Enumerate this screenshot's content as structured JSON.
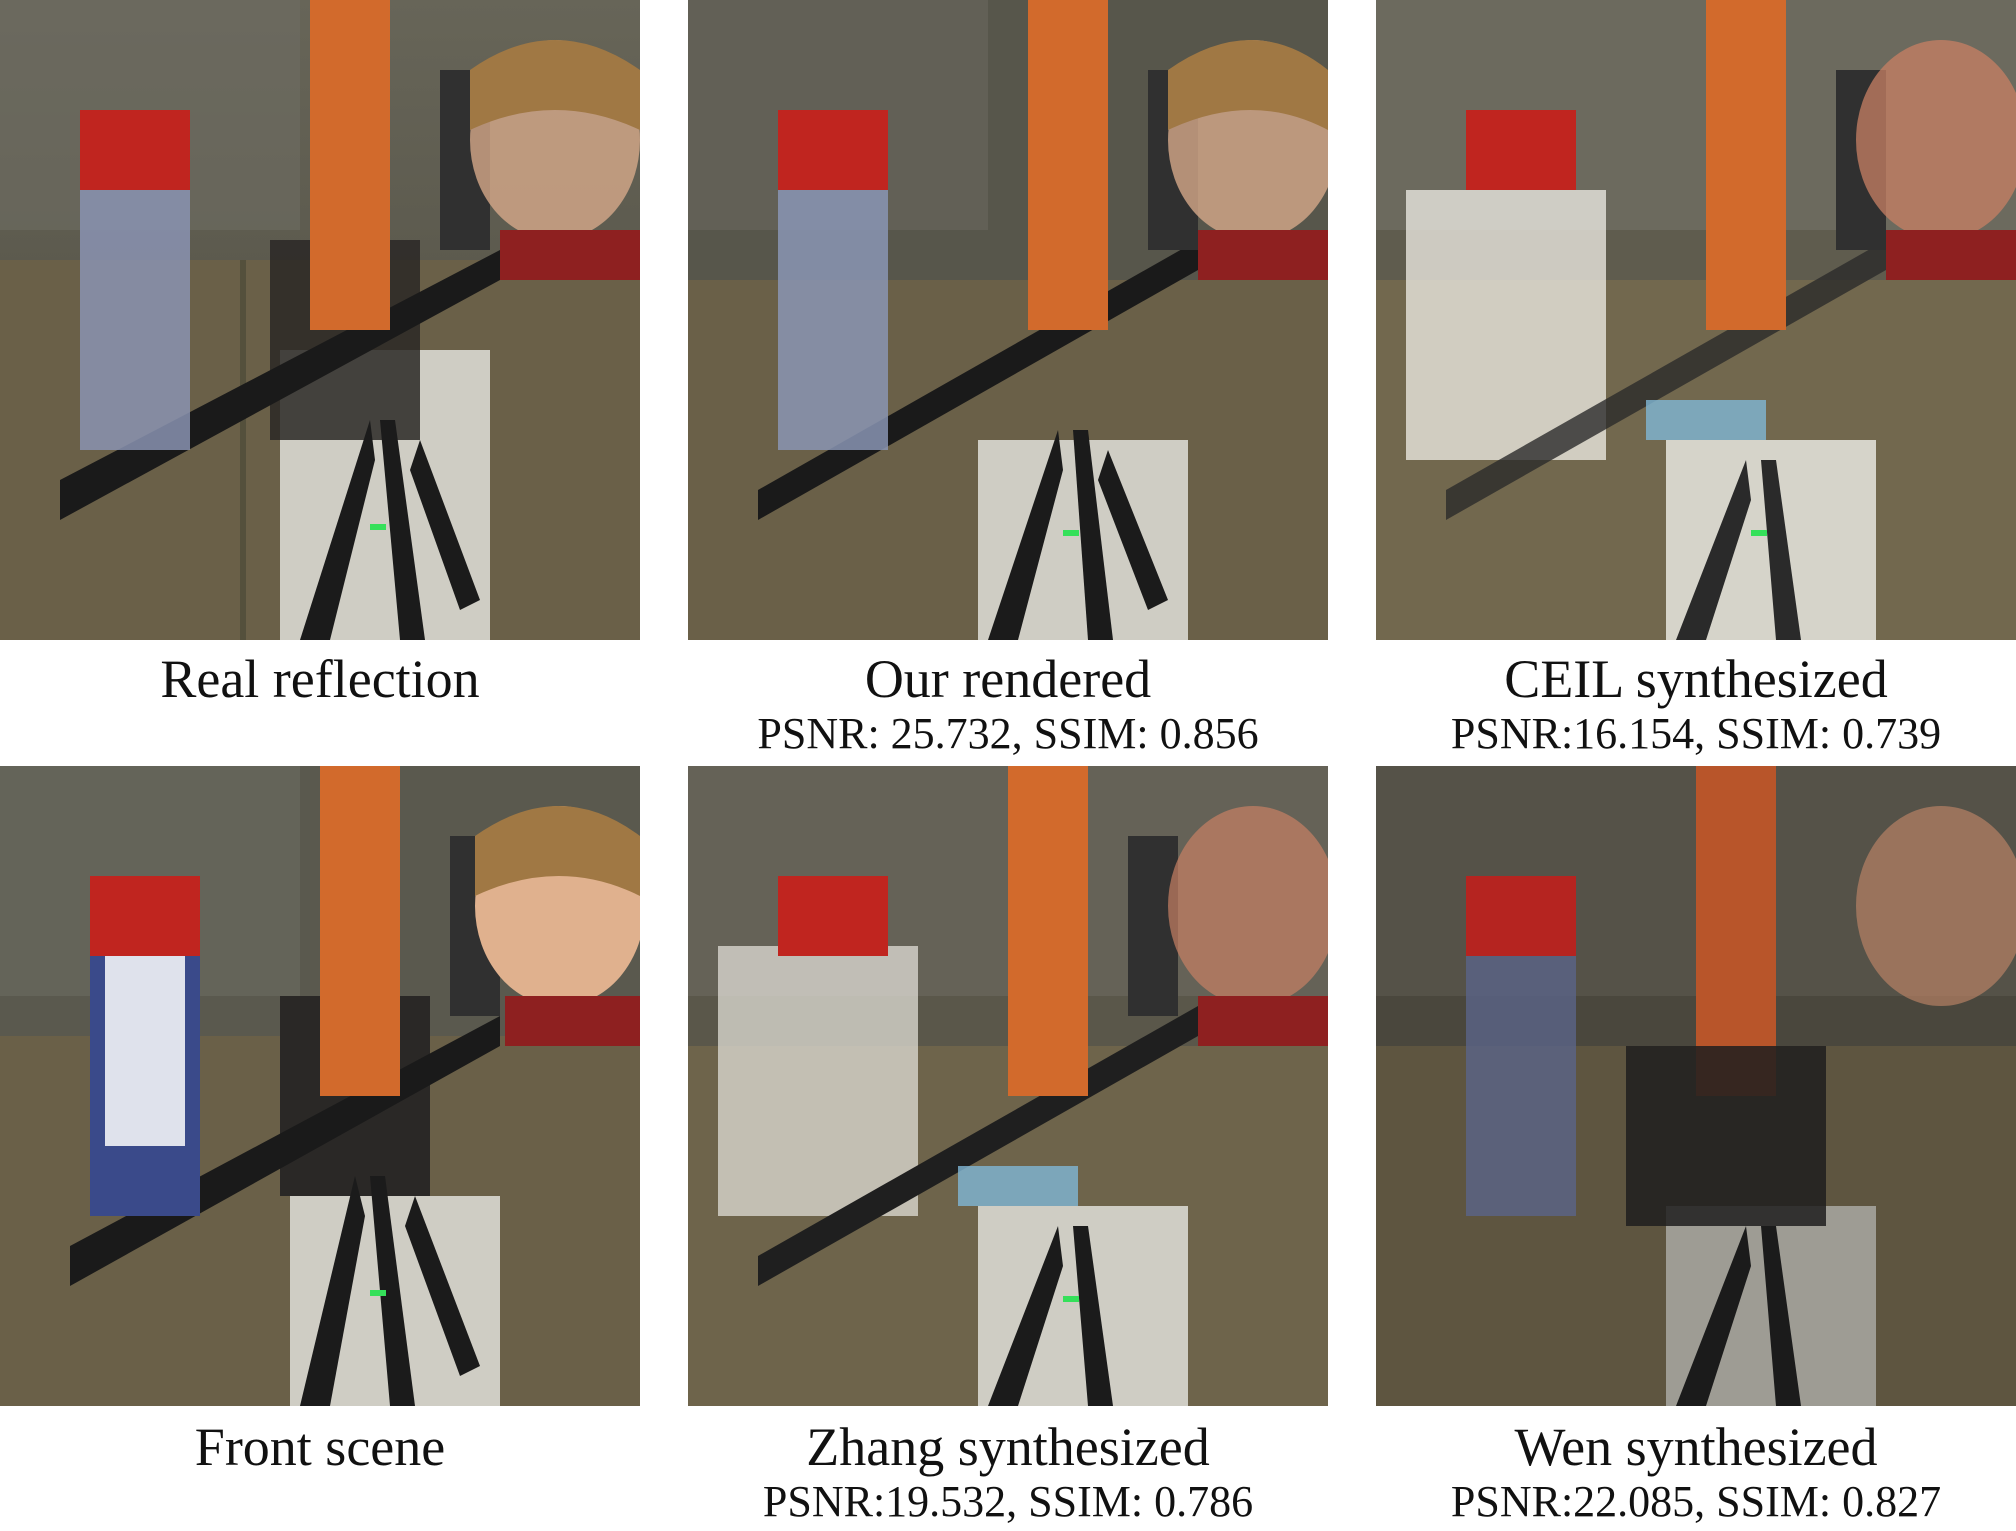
{
  "panels": [
    {
      "id": "real",
      "caption": "Real reflection",
      "metrics": ""
    },
    {
      "id": "ours",
      "caption": "Our rendered",
      "metrics": "PSNR: 25.732, SSIM: 0.856"
    },
    {
      "id": "ceil",
      "caption": "CEIL synthesized",
      "metrics": "PSNR:16.154, SSIM: 0.739"
    },
    {
      "id": "front",
      "caption": "Front scene",
      "metrics": ""
    },
    {
      "id": "zhang",
      "caption": "Zhang synthesized",
      "metrics": "PSNR:19.532, SSIM: 0.786"
    },
    {
      "id": "wen",
      "caption": "Wen synthesized",
      "metrics": "PSNR:22.085, SSIM: 0.827"
    }
  ],
  "colors": {
    "wall": "#5d5a4c",
    "cabinet": "#6b6148",
    "red_can": "#c0251f",
    "orange_can": "#d26a2c",
    "tripod": "#1b1b1b",
    "green_led": "#35e05a"
  }
}
